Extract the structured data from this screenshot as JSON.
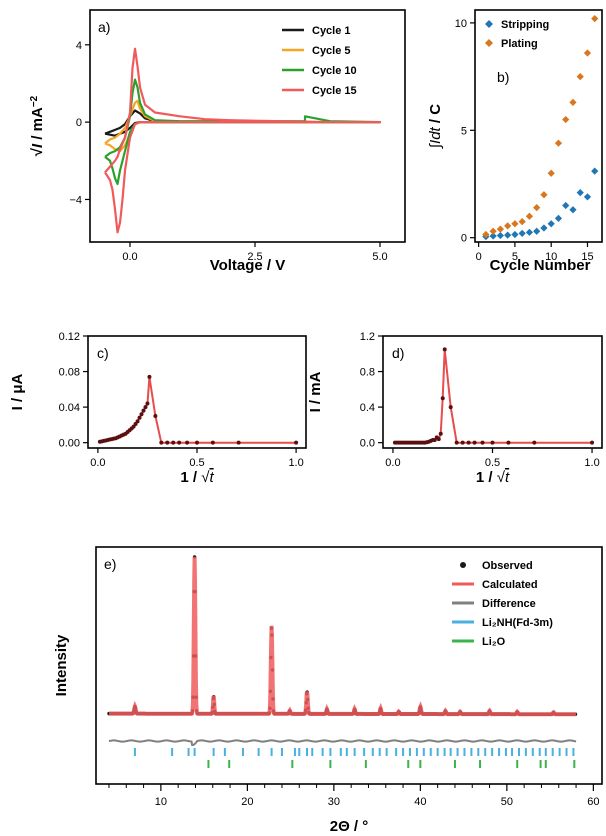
{
  "chart_data": [
    {
      "panel": "a)",
      "type": "line",
      "xlabel": "Voltage / V",
      "ylabel_prefix": "√",
      "ylabel_main": "I",
      "ylabel_suffix": " / mA",
      "ylabel_exp": "−2",
      "xticks": [
        "0.0",
        "2.5",
        "5.0"
      ],
      "xtick_values": [
        0,
        2.5,
        5.0
      ],
      "yticks": [
        "4",
        "0",
        "−4"
      ],
      "ytick_values": [
        4,
        0,
        -4
      ],
      "xlim": [
        -0.8,
        5.5
      ],
      "ylim": [
        -6.2,
        5.8
      ],
      "legend_position": "top-right",
      "series": [
        {
          "name": "Cycle 1",
          "color": "#1a1a1a",
          "x": [
            -0.5,
            -0.4,
            -0.3,
            -0.2,
            -0.1,
            0,
            0.1,
            0.2,
            0.3,
            0.5,
            1,
            2,
            3,
            4,
            5,
            4,
            3,
            2,
            1,
            0.5,
            0.3,
            0.2,
            0.1,
            0,
            -0.1,
            -0.2,
            -0.3,
            -0.4,
            -0.5
          ],
          "y": [
            -0.6,
            -0.5,
            -0.4,
            -0.3,
            -0.1,
            0.3,
            0.6,
            0.45,
            0.2,
            0.05,
            0,
            0,
            0,
            0,
            0,
            0,
            0,
            0,
            0,
            0,
            0,
            0,
            -0.05,
            -0.3,
            -0.5,
            -0.6,
            -0.7,
            -0.65,
            -0.6
          ]
        },
        {
          "name": "Cycle 5",
          "color": "#f5a623",
          "x": [
            -0.5,
            -0.4,
            -0.3,
            -0.2,
            -0.1,
            0,
            0.1,
            0.15,
            0.2,
            0.3,
            0.5,
            1,
            2,
            3,
            4,
            5,
            4,
            3,
            2,
            1,
            0.5,
            0.3,
            0.2,
            0.1,
            0,
            -0.1,
            -0.2,
            -0.3,
            -0.4,
            -0.5
          ],
          "y": [
            -1.1,
            -0.9,
            -0.8,
            -0.6,
            -0.3,
            0.3,
            1.0,
            1.1,
            0.7,
            0.3,
            0.05,
            0,
            0,
            0,
            0,
            0,
            0,
            0,
            0,
            0,
            0,
            0,
            0,
            -0.1,
            -0.6,
            -1.2,
            -1.5,
            -1.4,
            -1.2,
            -1.1
          ]
        },
        {
          "name": "Cycle 10",
          "color": "#2ca02c",
          "x": [
            -0.5,
            -0.4,
            -0.3,
            -0.2,
            -0.1,
            0,
            0.05,
            0.1,
            0.15,
            0.2,
            0.3,
            0.5,
            1,
            2,
            3,
            3.5,
            3.5,
            4,
            5,
            4,
            3,
            2,
            1,
            0.5,
            0.3,
            0.2,
            0.1,
            0,
            -0.1,
            -0.2,
            -0.25,
            -0.3,
            -0.35,
            -0.4,
            -0.5
          ],
          "y": [
            -1.8,
            -1.6,
            -1.5,
            -1.3,
            -0.8,
            0.3,
            1.5,
            2.2,
            1.8,
            1.0,
            0.4,
            0.1,
            0.05,
            0.05,
            0.05,
            0.05,
            0.3,
            0.05,
            0,
            0,
            0,
            0,
            0,
            0,
            0,
            0,
            -0.1,
            -0.5,
            -1.5,
            -2.5,
            -3.2,
            -2.9,
            -2.4,
            -2.0,
            -1.8
          ]
        },
        {
          "name": "Cycle 15",
          "color": "#f05a5a",
          "x": [
            -0.5,
            -0.4,
            -0.3,
            -0.25,
            -0.2,
            -0.1,
            0,
            0.05,
            0.1,
            0.15,
            0.2,
            0.3,
            0.5,
            1,
            1.5,
            2,
            3,
            4,
            5,
            4,
            3,
            2,
            1,
            0.5,
            0.3,
            0.2,
            0.1,
            0,
            -0.1,
            -0.15,
            -0.2,
            -0.25,
            -0.3,
            -0.35,
            -0.4,
            -0.5
          ],
          "y": [
            -2.6,
            -2.3,
            -2.0,
            -1.8,
            -1.4,
            -0.8,
            0.5,
            2.8,
            3.8,
            2.9,
            1.8,
            0.9,
            0.5,
            0.3,
            0.15,
            0.1,
            0.05,
            0,
            0,
            0,
            0,
            0,
            0,
            0,
            0,
            0,
            -0.1,
            -0.8,
            -2.5,
            -4.0,
            -5.2,
            -5.7,
            -4.5,
            -3.5,
            -3.0,
            -2.6
          ]
        }
      ]
    },
    {
      "panel": "b)",
      "type": "scatter",
      "xlabel": "Cycle Number",
      "ylabel_prefix": "∫",
      "ylabel_main": "Idt",
      "ylabel_suffix": " / C",
      "xticks": [
        "0",
        "5",
        "10",
        "15"
      ],
      "xtick_values": [
        0,
        5,
        10,
        15
      ],
      "yticks": [
        "0",
        "5",
        "10"
      ],
      "ytick_values": [
        0,
        5,
        10
      ],
      "xlim": [
        -0.5,
        17
      ],
      "ylim": [
        -0.2,
        10.6
      ],
      "legend_position": "top-left",
      "series": [
        {
          "name": "Stripping",
          "color": "#1f77b4",
          "x": [
            1,
            2,
            3,
            4,
            5,
            6,
            7,
            8,
            9,
            10,
            11,
            12,
            13,
            14,
            15,
            16
          ],
          "y": [
            0.05,
            0.08,
            0.1,
            0.12,
            0.15,
            0.2,
            0.25,
            0.3,
            0.45,
            0.65,
            0.9,
            1.5,
            1.3,
            2.1,
            1.9,
            3.1
          ]
        },
        {
          "name": "Plating",
          "color": "#d9761e",
          "x": [
            1,
            2,
            3,
            4,
            5,
            6,
            7,
            8,
            9,
            10,
            11,
            12,
            13,
            14,
            15,
            16
          ],
          "y": [
            0.15,
            0.3,
            0.4,
            0.55,
            0.65,
            0.75,
            1.0,
            1.4,
            2.0,
            3.0,
            4.4,
            5.5,
            6.3,
            7.5,
            8.6,
            10.2
          ]
        }
      ]
    },
    {
      "panel": "c)",
      "type": "line",
      "xlabel_main": "1",
      "xlabel_sep": " / ",
      "xlabel_root": "√",
      "xlabel_var": "t",
      "ylabel": "I / μA",
      "xticks": [
        "0.0",
        "0.5",
        "1.0"
      ],
      "xtick_values": [
        0,
        0.5,
        1.0
      ],
      "yticks": [
        "0.00",
        "0.04",
        "0.08",
        "0.12"
      ],
      "ytick_values": [
        0,
        0.04,
        0.08,
        0.12
      ],
      "xlim": [
        -0.05,
        1.05
      ],
      "ylim": [
        -0.006,
        0.12
      ],
      "series": [
        {
          "name": "",
          "color": "#e84c4c",
          "x": [
            0.01,
            0.02,
            0.03,
            0.04,
            0.05,
            0.06,
            0.07,
            0.08,
            0.09,
            0.1,
            0.11,
            0.12,
            0.13,
            0.14,
            0.15,
            0.16,
            0.17,
            0.18,
            0.19,
            0.2,
            0.21,
            0.22,
            0.23,
            0.24,
            0.25,
            0.26,
            0.29,
            0.32,
            0.35,
            0.38,
            0.41,
            0.45,
            0.5,
            0.58,
            0.71,
            1.0
          ],
          "y": [
            0.001,
            0.0015,
            0.002,
            0.0025,
            0.003,
            0.0035,
            0.004,
            0.0045,
            0.005,
            0.006,
            0.007,
            0.008,
            0.009,
            0.01,
            0.012,
            0.014,
            0.016,
            0.018,
            0.021,
            0.024,
            0.028,
            0.032,
            0.036,
            0.04,
            0.044,
            0.074,
            0.03,
            0,
            0,
            0,
            0,
            0,
            0,
            0,
            0,
            0
          ]
        }
      ]
    },
    {
      "panel": "d)",
      "type": "line",
      "xlabel_main": "1",
      "xlabel_sep": " / ",
      "xlabel_root": "√",
      "xlabel_var": "t",
      "ylabel": "I / mA",
      "xticks": [
        "0.0",
        "0.5",
        "1.0"
      ],
      "xtick_values": [
        0,
        0.5,
        1.0
      ],
      "yticks": [
        "0.0",
        "0.4",
        "0.8",
        "1.2"
      ],
      "ytick_values": [
        0,
        0.4,
        0.8,
        1.2
      ],
      "xlim": [
        -0.05,
        1.05
      ],
      "ylim": [
        -0.06,
        1.2
      ],
      "series": [
        {
          "name": "",
          "color": "#e84c4c",
          "x": [
            0.01,
            0.02,
            0.03,
            0.04,
            0.05,
            0.06,
            0.07,
            0.08,
            0.09,
            0.1,
            0.11,
            0.12,
            0.13,
            0.14,
            0.15,
            0.16,
            0.17,
            0.18,
            0.19,
            0.2,
            0.21,
            0.22,
            0.23,
            0.24,
            0.25,
            0.26,
            0.29,
            0.32,
            0.35,
            0.38,
            0.41,
            0.45,
            0.5,
            0.58,
            0.71,
            1.0
          ],
          "y": [
            0,
            0,
            0,
            0,
            0,
            0,
            0,
            0,
            0,
            0,
            0,
            0,
            0,
            0,
            0,
            0,
            0.005,
            0.01,
            0.02,
            0.03,
            0.03,
            0.06,
            0.04,
            0.1,
            0.5,
            1.05,
            0.4,
            0,
            0,
            0,
            0,
            0,
            0,
            0,
            0,
            0
          ]
        }
      ]
    },
    {
      "panel": "e)",
      "type": "line",
      "xlabel_main": "2Θ",
      "xlabel_suffix": " / °",
      "ylabel": "Intensity",
      "xticks": [
        "10",
        "20",
        "30",
        "40",
        "50",
        "60"
      ],
      "xtick_values": [
        10,
        20,
        30,
        40,
        50,
        60
      ],
      "xlim": [
        2.5,
        61
      ],
      "legend_position": "top-right",
      "legend": [
        {
          "name": "Observed",
          "color": "#1a1a1a",
          "kind": "dot"
        },
        {
          "name": "Calculated",
          "color": "#f05a5a",
          "kind": "line"
        },
        {
          "name": "Difference",
          "color": "#808080",
          "kind": "line"
        },
        {
          "name": "Li₂NH(Fd-3m)",
          "color": "#4ab0e0",
          "kind": "line"
        },
        {
          "name": "Li₂O",
          "color": "#3cb44b",
          "kind": "line"
        }
      ],
      "baseline": 0.04,
      "peaks": [
        {
          "x": 7.0,
          "h": 0.045,
          "w": 0.12
        },
        {
          "x": 13.9,
          "h": 0.98,
          "w": 0.12
        },
        {
          "x": 16.1,
          "h": 0.11,
          "w": 0.1
        },
        {
          "x": 22.8,
          "h": 0.55,
          "w": 0.12
        },
        {
          "x": 24.9,
          "h": 0.02,
          "w": 0.1
        },
        {
          "x": 26.9,
          "h": 0.14,
          "w": 0.12
        },
        {
          "x": 29.2,
          "h": 0.03,
          "w": 0.1
        },
        {
          "x": 32.4,
          "h": 0.03,
          "w": 0.1
        },
        {
          "x": 35.4,
          "h": 0.035,
          "w": 0.1
        },
        {
          "x": 37.5,
          "h": 0.015,
          "w": 0.1
        },
        {
          "x": 40.0,
          "h": 0.045,
          "w": 0.12
        },
        {
          "x": 42.9,
          "h": 0.02,
          "w": 0.1
        },
        {
          "x": 44.6,
          "h": 0.015,
          "w": 0.1
        },
        {
          "x": 48.0,
          "h": 0.02,
          "w": 0.1
        },
        {
          "x": 51.2,
          "h": 0.015,
          "w": 0.1
        },
        {
          "x": 55.4,
          "h": 0.012,
          "w": 0.1
        }
      ],
      "ticks_li2nh": [
        7.0,
        11.3,
        13.2,
        13.9,
        16.1,
        17.4,
        19.5,
        21.3,
        22.8,
        24.0,
        25.5,
        26.0,
        26.9,
        27.5,
        28.7,
        29.6,
        30.8,
        31.5,
        32.4,
        33.5,
        34.5,
        35.3,
        36.1,
        37.2,
        38.0,
        38.8,
        39.6,
        40.4,
        41.2,
        42.0,
        42.8,
        43.5,
        44.3,
        45.1,
        45.9,
        46.7,
        47.5,
        48.3,
        49.1,
        49.9,
        50.6,
        51.4,
        52.2,
        53.0,
        53.8,
        54.5,
        55.3,
        56.1,
        56.9,
        57.7
      ],
      "ticks_li2o": [
        15.5,
        17.9,
        25.2,
        29.6,
        33.7,
        38.6,
        40.0,
        44.0,
        46.9,
        51.2,
        53.9,
        54.5,
        57.8
      ]
    }
  ]
}
